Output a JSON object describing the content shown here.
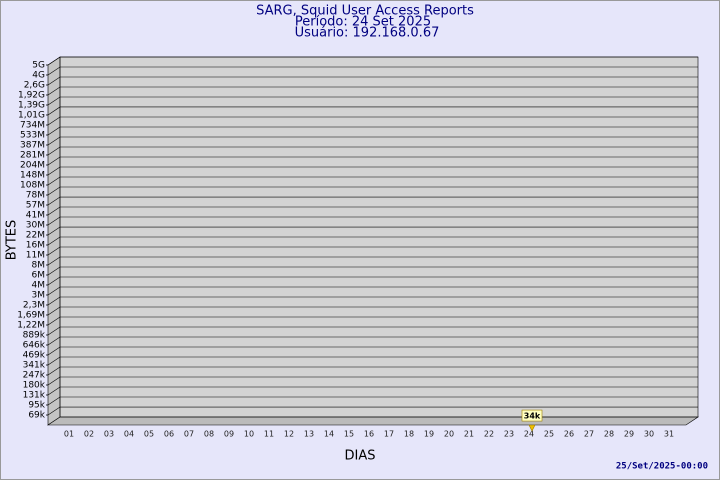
{
  "chart_data": {
    "type": "line",
    "title": "SARG, Squid User Access Reports",
    "subtitle": "Período: 24 Set 2025",
    "subtitle2": "Usuário: 192.168.0.67",
    "y_label": "BYTES",
    "x_label": "DIAS",
    "footer": "25/Set/2025-00:00",
    "log_scale": true,
    "grid": true,
    "categories": [
      "01",
      "02",
      "03",
      "04",
      "05",
      "06",
      "07",
      "08",
      "09",
      "10",
      "11",
      "12",
      "13",
      "14",
      "15",
      "16",
      "17",
      "18",
      "19",
      "20",
      "21",
      "22",
      "23",
      "24",
      "25",
      "26",
      "27",
      "28",
      "29",
      "30",
      "31"
    ],
    "series": [
      {
        "color": "#f0c000",
        "values": [
          null,
          null,
          null,
          null,
          null,
          null,
          null,
          null,
          null,
          null,
          null,
          null,
          null,
          null,
          null,
          null,
          null,
          null,
          null,
          null,
          null,
          null,
          null,
          34000,
          null,
          null,
          null,
          null,
          null,
          null,
          null
        ],
        "value_labels": [
          null,
          null,
          null,
          null,
          null,
          null,
          null,
          null,
          null,
          null,
          null,
          null,
          null,
          null,
          null,
          null,
          null,
          null,
          null,
          null,
          null,
          null,
          null,
          "34k",
          null,
          null,
          null,
          null,
          null,
          null,
          null
        ]
      }
    ],
    "ylim": [
      50000,
      5000000000
    ],
    "yticks": [
      {
        "value": 68800,
        "label": "69k"
      },
      {
        "value": 94800,
        "label": "95k"
      },
      {
        "value": 130500,
        "label": "131k"
      },
      {
        "value": 179700,
        "label": "180k"
      },
      {
        "value": 247400,
        "label": "247k"
      },
      {
        "value": 340600,
        "label": "341k"
      },
      {
        "value": 469000,
        "label": "469k"
      },
      {
        "value": 645800,
        "label": "646k"
      },
      {
        "value": 889100,
        "label": "889k"
      },
      {
        "value": 1224000,
        "label": "1,22M"
      },
      {
        "value": 1686000,
        "label": "1,69M"
      },
      {
        "value": 2321000,
        "label": "2,3M"
      },
      {
        "value": 3196000,
        "label": "3M"
      },
      {
        "value": 4400000,
        "label": "4M"
      },
      {
        "value": 6057000,
        "label": "6M"
      },
      {
        "value": 8340000,
        "label": "8M"
      },
      {
        "value": 11480000,
        "label": "11M"
      },
      {
        "value": 15810000,
        "label": "16M"
      },
      {
        "value": 21760000,
        "label": "22M"
      },
      {
        "value": 29970000,
        "label": "30M"
      },
      {
        "value": 41260000,
        "label": "41M"
      },
      {
        "value": 56800000,
        "label": "57M"
      },
      {
        "value": 78210000,
        "label": "78M"
      },
      {
        "value": 107700000,
        "label": "108M"
      },
      {
        "value": 148300000,
        "label": "148M"
      },
      {
        "value": 204200000,
        "label": "204M"
      },
      {
        "value": 281200000,
        "label": "281M"
      },
      {
        "value": 387100000,
        "label": "387M"
      },
      {
        "value": 533000000,
        "label": "533M"
      },
      {
        "value": 733800000,
        "label": "734M"
      },
      {
        "value": 1011000000,
        "label": "1,01G"
      },
      {
        "value": 1391000000,
        "label": "1,39G"
      },
      {
        "value": 1916000000,
        "label": "1,92G"
      },
      {
        "value": 2638000000,
        "label": "2,6G"
      },
      {
        "value": 3632000000,
        "label": "4G"
      },
      {
        "value": 5000000000,
        "label": "5G"
      }
    ]
  }
}
